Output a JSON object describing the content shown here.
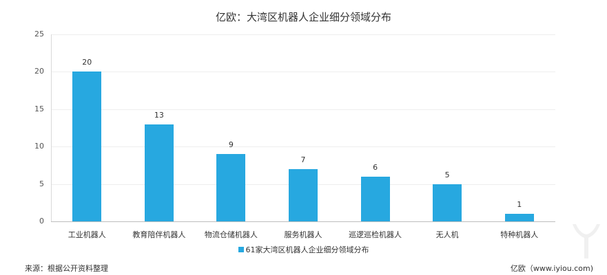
{
  "chart_data": {
    "type": "bar",
    "title": "亿欧：大湾区机器人企业细分领域分布",
    "categories": [
      "工业机器人",
      "教育陪伴机器人",
      "物流仓储机器人",
      "服务机器人",
      "巡逻巡检机器人",
      "无人机",
      "特种机器人"
    ],
    "series": [
      {
        "name": "61家大湾区机器人企业细分领域分布",
        "values": [
          20,
          13,
          9,
          7,
          6,
          5,
          1
        ],
        "color": "#27a8e0"
      }
    ],
    "xlabel": "",
    "ylabel": "",
    "ylim": [
      0,
      25
    ],
    "yticks": [
      0,
      5,
      10,
      15,
      20,
      25
    ],
    "grid": true,
    "legend_position": "bottom",
    "data_labels": true
  },
  "yticks": [
    "0",
    "5",
    "10",
    "15",
    "20",
    "25"
  ],
  "bar_labels": [
    "20",
    "13",
    "9",
    "7",
    "6",
    "5",
    "1"
  ],
  "legend_label": "61家大湾区机器人企业细分领域分布",
  "footer": {
    "source": "来源：根据公开资料整理",
    "credit": "亿欧（www.iyiou.com)"
  }
}
